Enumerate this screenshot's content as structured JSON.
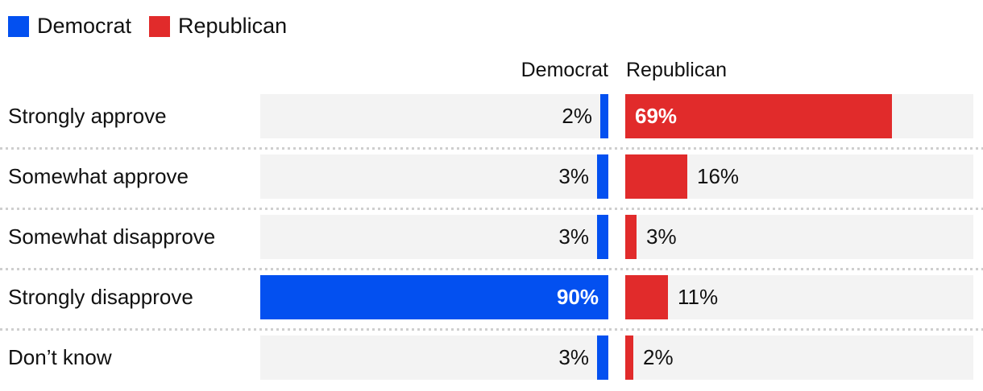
{
  "legend": {
    "items": [
      {
        "label": "Democrat",
        "color": "#0350f0"
      },
      {
        "label": "Republican",
        "color": "#e12b2b"
      }
    ]
  },
  "column_headers": {
    "democrat": "Democrat",
    "republican": "Republican"
  },
  "chart_data": {
    "type": "bar",
    "orientation": "horizontal-mirrored",
    "title": "",
    "categories": [
      "Strongly approve",
      "Somewhat approve",
      "Somewhat disapprove",
      "Strongly disapprove",
      "Don’t know"
    ],
    "series": [
      {
        "name": "Democrat",
        "color": "#0350f0",
        "values": [
          2,
          3,
          3,
          90,
          3
        ],
        "labels": [
          "2%",
          "3%",
          "3%",
          "90%",
          "3%"
        ]
      },
      {
        "name": "Republican",
        "color": "#e12b2b",
        "values": [
          69,
          16,
          3,
          11,
          2
        ],
        "labels": [
          "69%",
          "16%",
          "3%",
          "11%",
          "2%"
        ]
      }
    ],
    "scale_max": 90,
    "xlim": [
      0,
      90
    ],
    "grid": false,
    "track_color": "#f3f3f3",
    "divider_color": "#cfcfcf",
    "legend_position": "top-left"
  }
}
